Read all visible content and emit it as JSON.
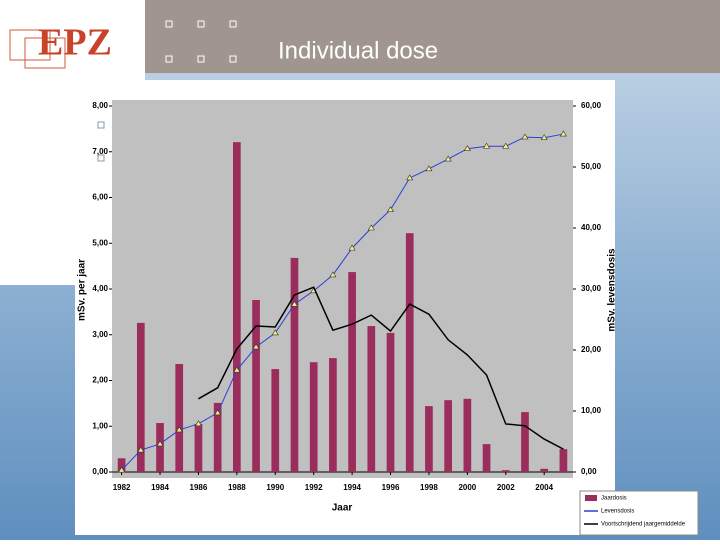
{
  "header": {
    "logo": "EPZ",
    "title": "Individual dose"
  },
  "chart_data": {
    "type": "bar",
    "x_label": "Jaar",
    "y_label": "mSv. per jaar",
    "y2_label": "mSv. levensdosis",
    "x": [
      1982,
      1983,
      1984,
      1985,
      1986,
      1987,
      1988,
      1989,
      1990,
      1991,
      1992,
      1993,
      1994,
      1995,
      1996,
      1997,
      1998,
      1999,
      2000,
      2001,
      2002,
      2003,
      2004,
      2005
    ],
    "xlim": [
      1981.5,
      2005.5
    ],
    "xticks": [
      1982,
      1984,
      1986,
      1988,
      1990,
      1992,
      1994,
      1996,
      1998,
      2000,
      2002,
      2004
    ],
    "ylim": [
      0,
      8
    ],
    "yticks": [
      {
        "value": 0,
        "label": "0,00"
      },
      {
        "value": 1,
        "label": "1,00"
      },
      {
        "value": 2,
        "label": "2,00"
      },
      {
        "value": 3,
        "label": "3,00"
      },
      {
        "value": 4,
        "label": "4,00"
      },
      {
        "value": 5,
        "label": "5,00"
      },
      {
        "value": 6,
        "label": "6,00"
      },
      {
        "value": 7,
        "label": "7,00"
      },
      {
        "value": 8,
        "label": "8,00"
      }
    ],
    "y2lim": [
      0,
      60
    ],
    "y2ticks": [
      {
        "value": 0,
        "label": "0,00"
      },
      {
        "value": 10,
        "label": "10,00"
      },
      {
        "value": 20,
        "label": "20,00"
      },
      {
        "value": 30,
        "label": "30,00"
      },
      {
        "value": 40,
        "label": "40,00"
      },
      {
        "value": 50,
        "label": "50,00"
      },
      {
        "value": 60,
        "label": "60,00"
      }
    ],
    "series": [
      {
        "name": "Jaardosis",
        "type": "bar",
        "color": "#9b2d5c",
        "values": [
          0.3,
          3.26,
          1.07,
          2.36,
          1.05,
          1.51,
          7.21,
          3.76,
          2.25,
          4.68,
          2.4,
          2.49,
          4.37,
          3.19,
          3.04,
          5.22,
          1.44,
          1.57,
          1.6,
          0.61,
          0.04,
          1.31,
          0.07,
          0.5
        ]
      },
      {
        "name": "Levensdosis",
        "type": "line",
        "axis": "y2",
        "color": "#2a3fd6",
        "marker_color": "#f5f07a",
        "values": [
          0.3,
          3.6,
          4.6,
          6.9,
          7.9,
          9.7,
          16.7,
          20.5,
          22.8,
          27.5,
          29.7,
          32.3,
          36.7,
          40.0,
          43.0,
          48.2,
          49.7,
          51.3,
          53.0,
          53.4,
          53.4,
          54.9,
          54.8,
          55.4
        ]
      },
      {
        "name": "Voortschrijdend jaargemiddelde",
        "type": "line",
        "color": "#000000",
        "values": [
          null,
          null,
          null,
          null,
          1.6,
          1.84,
          2.69,
          3.19,
          3.17,
          3.87,
          4.04,
          3.1,
          3.23,
          3.43,
          3.08,
          3.67,
          3.45,
          2.89,
          2.56,
          2.12,
          1.05,
          1.01,
          0.72,
          0.5
        ]
      }
    ]
  }
}
